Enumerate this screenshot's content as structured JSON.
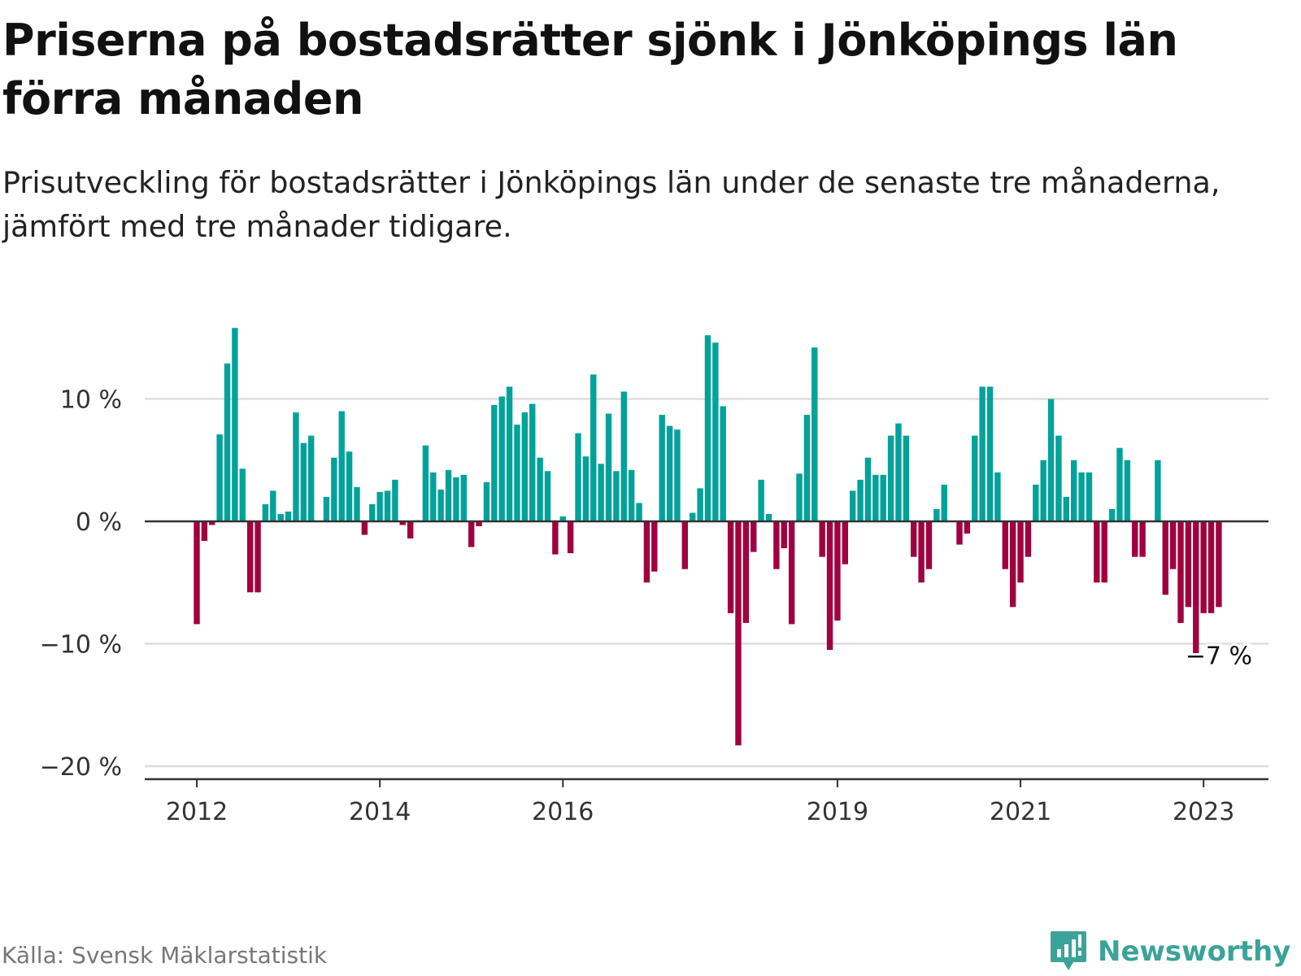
{
  "title": "Priserna på bostadsrätter sjönk i Jönköpings län förra månaden",
  "subtitle": "Prisutveckling för bostadsrätter i Jönköpings län under de senaste tre månaderna, jämfört med tre månader tidigare.",
  "source": "Källa: Svensk Mäklarstatistik",
  "brand": {
    "name": "Newsworthy",
    "icon": "newsworthy-logo-icon"
  },
  "colors": {
    "positive": "#00a299",
    "negative": "#a0003f",
    "gridline": "#dddddd",
    "zeroline": "#333333",
    "brand": "#3ba399"
  },
  "chart_data": {
    "type": "bar",
    "title": "Priserna på bostadsrätter sjönk i Jönköpings län förra månaden",
    "xlabel": "",
    "ylabel": "",
    "ylim": [
      -21,
      16.5
    ],
    "yticks": [
      10,
      0,
      -10,
      -20
    ],
    "ytick_labels": [
      "10 %",
      "0 %",
      "−10 %",
      "−20 %"
    ],
    "xtick_labels": [
      "2012",
      "2014",
      "2016",
      "2019",
      "2021",
      "2023"
    ],
    "x_start": "2012-01",
    "x_start_year": 2012,
    "values": [
      -8.4,
      -1.6,
      -0.3,
      7.1,
      12.9,
      15.8,
      4.3,
      -5.8,
      -5.8,
      1.4,
      2.5,
      0.6,
      0.8,
      8.9,
      6.4,
      7.0,
      0.0,
      2.0,
      5.2,
      9.0,
      5.7,
      2.8,
      -1.1,
      1.4,
      2.4,
      2.5,
      3.4,
      -0.3,
      -1.4,
      0.1,
      6.2,
      4.0,
      2.6,
      4.2,
      3.6,
      3.8,
      -2.1,
      -0.4,
      3.2,
      9.5,
      10.2,
      11.0,
      7.9,
      8.9,
      9.6,
      5.2,
      4.1,
      -2.7,
      0.4,
      -2.6,
      7.2,
      5.3,
      12.0,
      4.7,
      8.8,
      4.1,
      10.6,
      4.2,
      1.5,
      -5.0,
      -4.1,
      8.7,
      7.8,
      7.5,
      -3.9,
      0.7,
      2.7,
      15.2,
      14.6,
      9.4,
      -7.5,
      -18.3,
      -8.3,
      -2.5,
      3.4,
      0.6,
      -3.9,
      -2.2,
      -8.4,
      3.9,
      8.7,
      14.2,
      -2.9,
      -10.5,
      -8.1,
      -3.5,
      2.5,
      3.4,
      5.2,
      3.8,
      3.8,
      7.0,
      8.0,
      7.0,
      -2.9,
      -5.0,
      -3.9,
      1.0,
      3.0,
      0.0,
      -1.9,
      -1.0,
      7.0,
      11.0,
      11.0,
      4.0,
      -3.9,
      -7.0,
      -5.0,
      -2.9,
      3.0,
      5.0,
      10.0,
      7.0,
      2.0,
      5.0,
      4.0,
      4.0,
      -5.0,
      -5.0,
      1.0,
      6.0,
      5.0,
      -2.9,
      -2.9,
      0.0,
      5.0,
      -6.0,
      -3.9,
      -8.3,
      -7.0,
      -11.0,
      -7.5,
      -7.5,
      -7.0
    ],
    "annotation": {
      "text": "−7 %",
      "target": "last"
    }
  }
}
